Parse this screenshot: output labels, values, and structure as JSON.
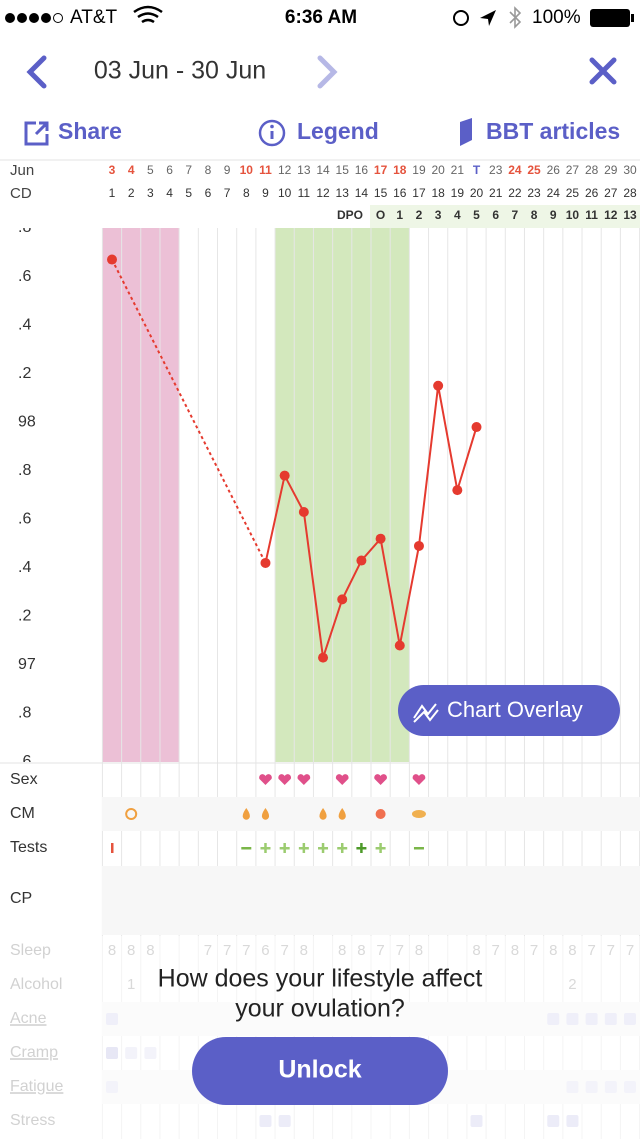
{
  "status": {
    "carrier": "AT&T",
    "time": "6:36 AM",
    "battery": "100%"
  },
  "header": {
    "title": "03 Jun - 30 Jun"
  },
  "toolbar": [
    "Share",
    "Legend",
    "BBT articles"
  ],
  "calendar": {
    "month": "Jun",
    "cd_label": "CD",
    "dpo_label": "DPO",
    "dates": [
      "3",
      "4",
      "5",
      "6",
      "7",
      "8",
      "9",
      "10",
      "11",
      "12",
      "13",
      "14",
      "15",
      "16",
      "17",
      "18",
      "19",
      "20",
      "21",
      "T",
      "23",
      "24",
      "25",
      "26",
      "27",
      "28",
      "29",
      "30"
    ],
    "red_dates": [
      0,
      1,
      7,
      8,
      14,
      15,
      21,
      22
    ],
    "today": 19,
    "cycle_days": [
      1,
      2,
      3,
      4,
      5,
      6,
      7,
      8,
      9,
      10,
      11,
      12,
      13,
      14,
      15,
      16,
      17,
      18,
      19,
      20,
      21,
      22,
      23,
      24,
      25,
      26,
      27,
      28
    ],
    "dpo": [
      null,
      null,
      null,
      null,
      null,
      null,
      null,
      null,
      null,
      null,
      null,
      null,
      null,
      null,
      "O",
      1,
      2,
      3,
      4,
      5,
      6,
      7,
      8,
      9,
      10,
      11,
      12,
      13
    ]
  },
  "chart": {
    "type": "line",
    "color": "#e53a2f",
    "ylim": [
      96.6,
      98.8
    ],
    "yticks": [
      {
        "value": 98.8,
        "label": ".8"
      },
      {
        "value": 98.6,
        "label": ".6"
      },
      {
        "value": 98.4,
        "label": ".4"
      },
      {
        "value": 98.2,
        "label": ".2"
      },
      98,
      {
        "value": 97.8,
        "label": ".8"
      },
      {
        "value": 97.6,
        "label": ".6"
      },
      {
        "value": 97.4,
        "label": ".4"
      },
      {
        "value": 97.2,
        "label": ".2"
      },
      97,
      {
        "value": 96.8,
        "label": ".8"
      },
      {
        "value": 96.6,
        "label": ".6"
      }
    ],
    "values": [
      98.67,
      null,
      null,
      null,
      null,
      null,
      null,
      null,
      97.42,
      97.78,
      97.63,
      97.03,
      97.27,
      97.43,
      97.52,
      97.08,
      97.49,
      98.15,
      97.72,
      97.98,
      null,
      null,
      null,
      null,
      null,
      null,
      null,
      null
    ]
  },
  "rows": {
    "labels": [
      "Sex",
      "CM",
      "Tests",
      "CP"
    ]
  },
  "lifestyle": {
    "labels": [
      "Sleep",
      "Alcohol",
      "Acne",
      "Cramp",
      "Fatigue",
      "Stress"
    ],
    "sleep": [
      8,
      8,
      8,
      null,
      null,
      7,
      7,
      7,
      6,
      7,
      8,
      null,
      8,
      8,
      7,
      7,
      8,
      null,
      null,
      8,
      7,
      8,
      7,
      8,
      8,
      7,
      7,
      7
    ],
    "alcohol": [
      null,
      1,
      null,
      null,
      null,
      null,
      null,
      null,
      null,
      null,
      null,
      null,
      null,
      null,
      null,
      null,
      null,
      null,
      null,
      null,
      null,
      null,
      null,
      null,
      2,
      null,
      null,
      null
    ]
  },
  "overlay_button": "Chart Overlay",
  "paywall": {
    "line1": "How does your lifestyle affect",
    "line2": "your ovulation?",
    "button": "Unlock"
  }
}
